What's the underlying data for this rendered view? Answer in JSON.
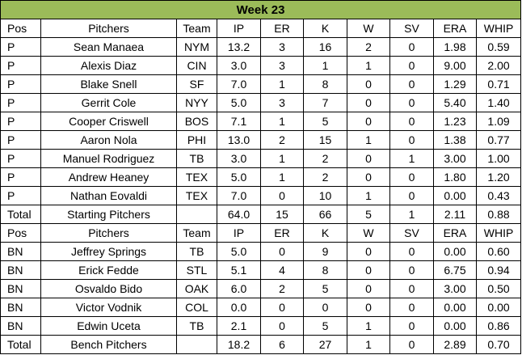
{
  "title": "Week 23",
  "headers": [
    "Pos",
    "Pitchers",
    "Team",
    "IP",
    "ER",
    "K",
    "W",
    "SV",
    "ERA",
    "WHIP"
  ],
  "starting": {
    "rows": [
      [
        "P",
        "Sean Manaea",
        "NYM",
        "13.2",
        "3",
        "16",
        "2",
        "0",
        "1.98",
        "0.59"
      ],
      [
        "P",
        "Alexis Diaz",
        "CIN",
        "3.0",
        "3",
        "1",
        "1",
        "0",
        "9.00",
        "2.00"
      ],
      [
        "P",
        "Blake Snell",
        "SF",
        "7.0",
        "1",
        "8",
        "0",
        "0",
        "1.29",
        "0.71"
      ],
      [
        "P",
        "Gerrit Cole",
        "NYY",
        "5.0",
        "3",
        "7",
        "0",
        "0",
        "5.40",
        "1.40"
      ],
      [
        "P",
        "Cooper Criswell",
        "BOS",
        "7.1",
        "1",
        "5",
        "0",
        "0",
        "1.23",
        "1.09"
      ],
      [
        "P",
        "Aaron Nola",
        "PHI",
        "13.0",
        "2",
        "15",
        "1",
        "0",
        "1.38",
        "0.77"
      ],
      [
        "P",
        "Manuel Rodriguez",
        "TB",
        "3.0",
        "1",
        "2",
        "0",
        "1",
        "3.00",
        "1.00"
      ],
      [
        "P",
        "Andrew Heaney",
        "TEX",
        "5.0",
        "1",
        "2",
        "0",
        "0",
        "1.80",
        "1.20"
      ],
      [
        "P",
        "Nathan Eovaldi",
        "TEX",
        "7.0",
        "0",
        "10",
        "1",
        "0",
        "0.00",
        "0.43"
      ]
    ],
    "total": [
      "Total",
      "Starting Pitchers",
      "",
      "64.0",
      "15",
      "66",
      "5",
      "1",
      "2.11",
      "0.88"
    ]
  },
  "bench": {
    "rows": [
      [
        "BN",
        "Jeffrey Springs",
        "TB",
        "5.0",
        "0",
        "9",
        "0",
        "0",
        "0.00",
        "0.60"
      ],
      [
        "BN",
        "Erick Fedde",
        "STL",
        "5.1",
        "4",
        "8",
        "0",
        "0",
        "6.75",
        "0.94"
      ],
      [
        "BN",
        "Osvaldo Bido",
        "OAK",
        "6.0",
        "2",
        "5",
        "0",
        "0",
        "3.00",
        "0.50"
      ],
      [
        "BN",
        "Victor Vodnik",
        "COL",
        "0.0",
        "0",
        "0",
        "0",
        "0",
        "0.00",
        "0.00"
      ],
      [
        "BN",
        "Edwin Uceta",
        "TB",
        "2.1",
        "0",
        "5",
        "1",
        "0",
        "0.00",
        "0.86"
      ]
    ],
    "total": [
      "Total",
      "Bench Pitchers",
      "",
      "18.2",
      "6",
      "27",
      "1",
      "0",
      "2.89",
      "0.70"
    ]
  }
}
